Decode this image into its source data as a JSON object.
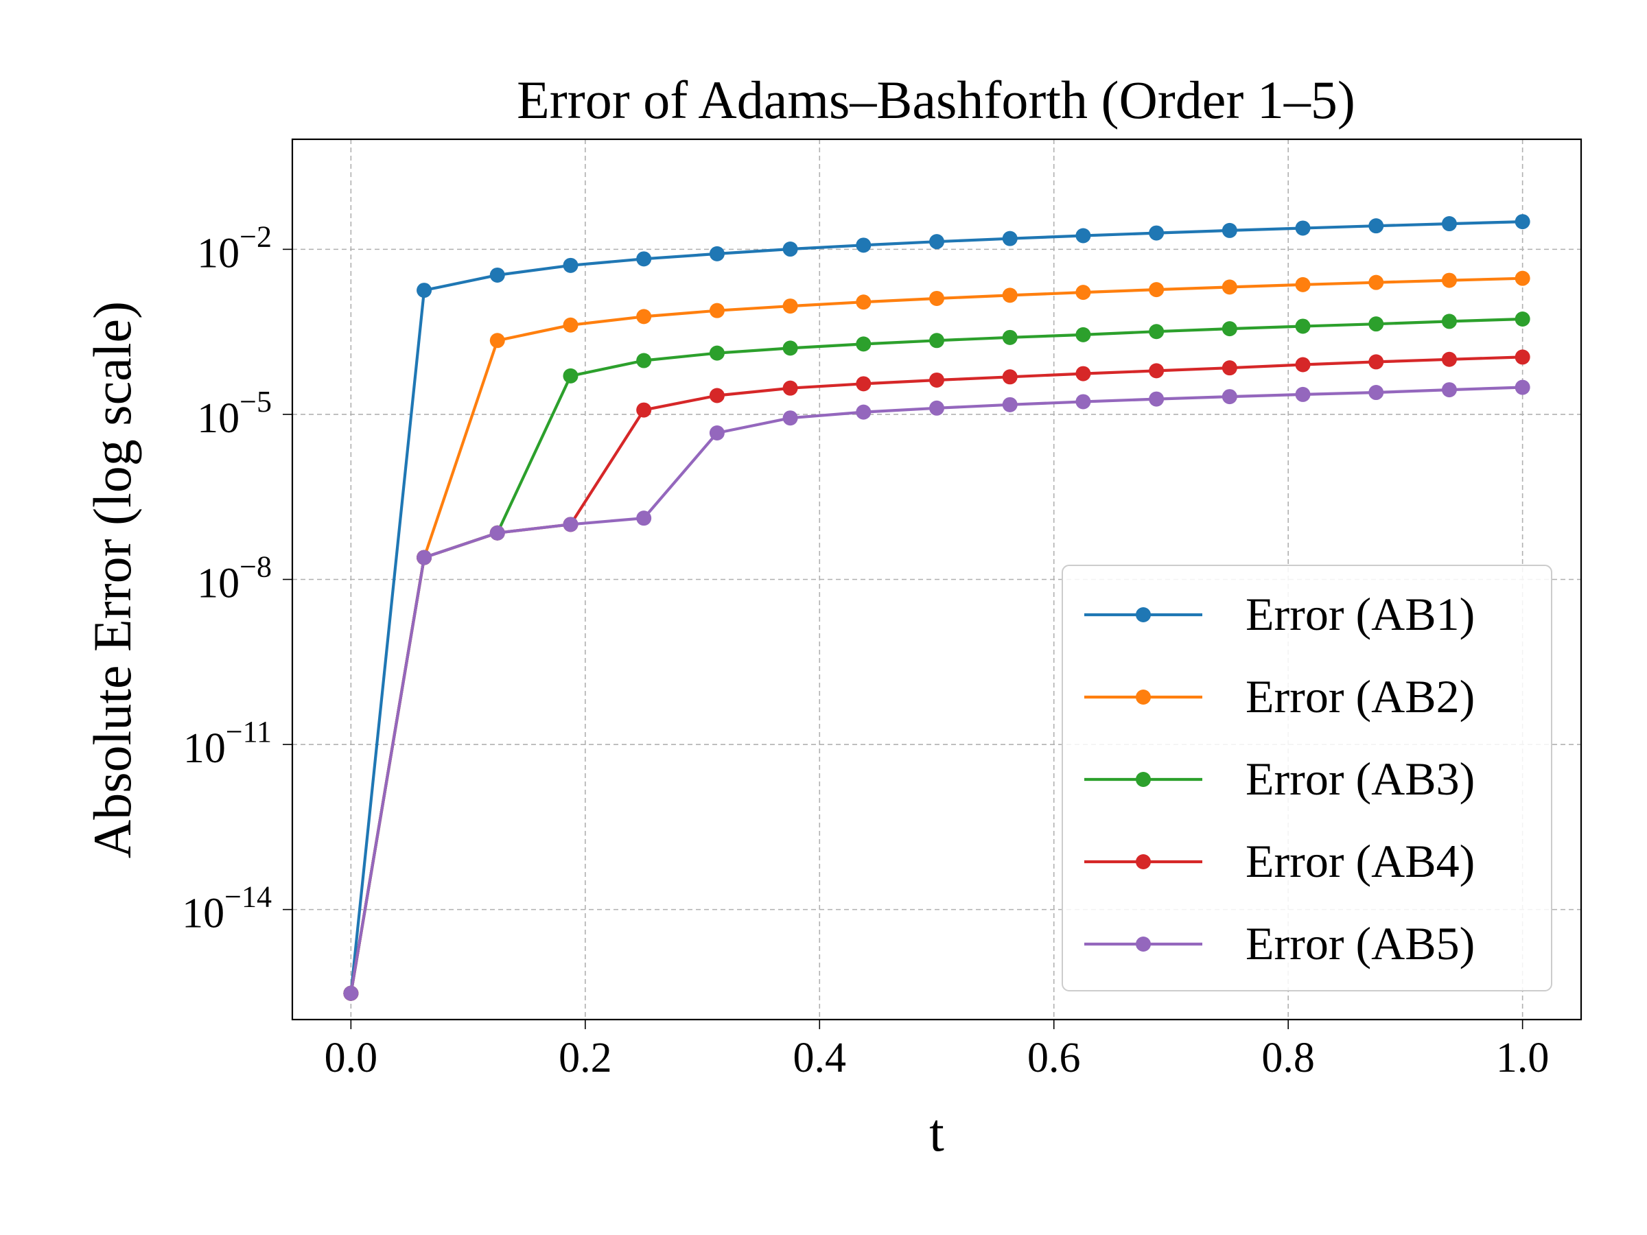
{
  "chart_data": {
    "type": "line",
    "title": "Error of Adams–Bashforth (Order 1–5)",
    "xlabel": "t",
    "ylabel": "Absolute Error (log scale)",
    "yscale": "log",
    "xlim": [
      -0.05,
      1.05
    ],
    "ylim_log10": [
      -16.0,
      0.0
    ],
    "grid": true,
    "legend_position": "lower-right",
    "x_ticks": [
      {
        "value": 0.0,
        "label": "0.0"
      },
      {
        "value": 0.2,
        "label": "0.2"
      },
      {
        "value": 0.4,
        "label": "0.4"
      },
      {
        "value": 0.6,
        "label": "0.6"
      },
      {
        "value": 0.8,
        "label": "0.8"
      },
      {
        "value": 1.0,
        "label": "1.0"
      }
    ],
    "y_ticks": [
      {
        "exponent": -2,
        "base": "10",
        "power": "−2"
      },
      {
        "exponent": -5,
        "base": "10",
        "power": "−5"
      },
      {
        "exponent": -8,
        "base": "10",
        "power": "−8"
      },
      {
        "exponent": -11,
        "base": "10",
        "power": "−11"
      },
      {
        "exponent": -14,
        "base": "10",
        "power": "−14"
      }
    ],
    "x": [
      0.0,
      0.0625,
      0.125,
      0.1875,
      0.25,
      0.3125,
      0.375,
      0.4375,
      0.5,
      0.5625,
      0.625,
      0.6875,
      0.75,
      0.8125,
      0.875,
      0.9375,
      1.0
    ],
    "series": [
      {
        "name": "Error (AB1)",
        "color": "#1f77b4",
        "values": [
          3e-16,
          0.0018,
          0.0034,
          0.0051,
          0.0067,
          0.0083,
          0.0101,
          0.0119,
          0.0138,
          0.0157,
          0.0177,
          0.0198,
          0.022,
          0.0243,
          0.0267,
          0.0292,
          0.0318
        ]
      },
      {
        "name": "Error (AB2)",
        "color": "#ff7f0e",
        "values": [
          3e-16,
          2.5e-08,
          0.00022,
          0.00042,
          0.0006,
          0.00077,
          0.00093,
          0.0011,
          0.00128,
          0.00146,
          0.00165,
          0.00185,
          0.00206,
          0.00228,
          0.0025,
          0.00273,
          0.00297
        ]
      },
      {
        "name": "Error (AB3)",
        "color": "#2ca02c",
        "values": [
          3e-16,
          2.5e-08,
          7e-08,
          5e-05,
          9.5e-05,
          0.00013,
          0.00016,
          0.00019,
          0.00022,
          0.00025,
          0.00028,
          0.00032,
          0.00036,
          0.0004,
          0.00044,
          0.00049,
          0.00054
        ]
      },
      {
        "name": "Error (AB4)",
        "color": "#d62728",
        "values": [
          3e-16,
          2.5e-08,
          7e-08,
          1e-07,
          1.2e-05,
          2.2e-05,
          3e-05,
          3.6e-05,
          4.2e-05,
          4.8e-05,
          5.5e-05,
          6.2e-05,
          7e-05,
          8e-05,
          9e-05,
          0.0001,
          0.00011
        ]
      },
      {
        "name": "Error (AB5)",
        "color": "#9467bd",
        "values": [
          3e-16,
          2.5e-08,
          7e-08,
          1e-07,
          1.3e-07,
          4.6e-06,
          8.6e-06,
          1.1e-05,
          1.3e-05,
          1.5e-05,
          1.7e-05,
          1.9e-05,
          2.1e-05,
          2.3e-05,
          2.5e-05,
          2.8e-05,
          3.1e-05
        ]
      }
    ]
  }
}
